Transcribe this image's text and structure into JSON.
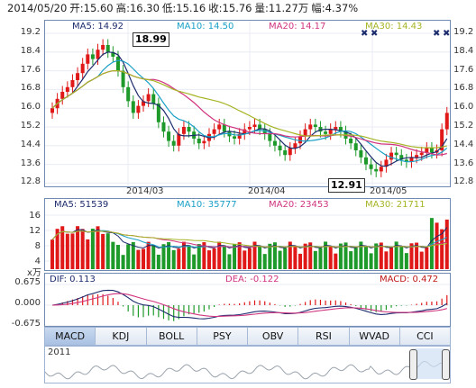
{
  "header": {
    "date": "2014/05/20",
    "open": "开:15.60",
    "high": "高:16.30",
    "low": "低:15.16",
    "close": "收:15.76",
    "volume": "量:11.27万",
    "change": "幅:4.37%"
  },
  "price_ma": {
    "ma5": "MA5: 14.92",
    "ma10": "MA10: 14.50",
    "ma20": "MA20: 14.17",
    "ma30": "MA30: 14.43"
  },
  "price_axis": [
    "19.2",
    "18.4",
    "17.6",
    "16.8",
    "16.0",
    "15.2",
    "14.4",
    "13.6",
    "12.8"
  ],
  "annotations": {
    "high": "18.99",
    "low": "12.91"
  },
  "dates": [
    "2014/03",
    "2014/04",
    "2014/05"
  ],
  "volume_ma": {
    "ma5": "MA5: 51539",
    "ma10": "MA10: 35777",
    "ma20": "MA20: 23453",
    "ma30": "MA30: 21711"
  },
  "volume_axis": [
    "16",
    "12",
    "8",
    "4"
  ],
  "volume_unit": "x万",
  "macd_labels": {
    "dif": "DIF: 0.113",
    "dea": "DEA: -0.122",
    "macd": "MACD: 0.472"
  },
  "macd_axis": [
    "0.675",
    "0.000",
    "-0.675"
  ],
  "tabs": [
    {
      "label": "MACD",
      "active": true
    },
    {
      "label": "KDJ",
      "active": false
    },
    {
      "label": "BOLL",
      "active": false
    },
    {
      "label": "PSY",
      "active": false
    },
    {
      "label": "OBV",
      "active": false
    },
    {
      "label": "RSI",
      "active": false
    },
    {
      "label": "WVAD",
      "active": false
    },
    {
      "label": "CCI",
      "active": false
    }
  ],
  "navigator": {
    "year": "2011"
  },
  "colors": {
    "up": "#e01818",
    "down": "#1e9a2a",
    "ma5": "#1d2c6e",
    "ma10": "#1aa0c6",
    "ma20": "#d0347f",
    "ma30": "#a6b424",
    "border": "#6f8bb4"
  },
  "chart_data": [
    {
      "type": "candlestick",
      "title": "",
      "ylim": [
        12.8,
        19.2
      ],
      "x_ticks": [
        "2014/03",
        "2014/04",
        "2014/05"
      ],
      "series": [
        {
          "name": "MA5",
          "latest": 14.92
        },
        {
          "name": "MA10",
          "latest": 14.5
        },
        {
          "name": "MA20",
          "latest": 14.17
        },
        {
          "name": "MA30",
          "latest": 14.43
        }
      ],
      "annotations": [
        {
          "label": "18.99",
          "kind": "high"
        },
        {
          "label": "12.91",
          "kind": "low"
        }
      ]
    },
    {
      "type": "bar",
      "title": "",
      "ylabel": "x万",
      "ylim": [
        0,
        16
      ],
      "series": [
        {
          "name": "MA5",
          "latest": 51539
        },
        {
          "name": "MA10",
          "latest": 35777
        },
        {
          "name": "MA20",
          "latest": 23453
        },
        {
          "name": "MA30",
          "latest": 21711
        }
      ]
    },
    {
      "type": "line",
      "title": "",
      "ylim": [
        -0.675,
        0.675
      ],
      "series": [
        {
          "name": "DIF",
          "latest": 0.113
        },
        {
          "name": "DEA",
          "latest": -0.122
        },
        {
          "name": "MACD",
          "latest": 0.472
        }
      ]
    }
  ]
}
